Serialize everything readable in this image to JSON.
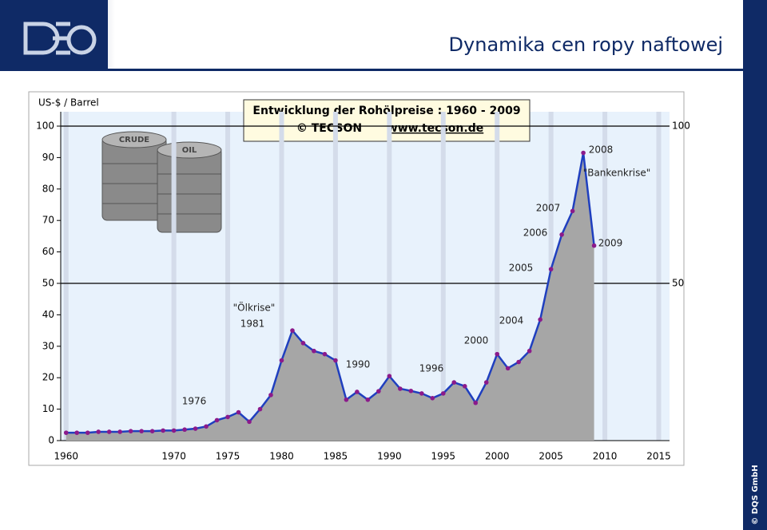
{
  "header": {
    "title": "Dynamika cen ropy naftowej"
  },
  "footer": {
    "copyright": "© DQS GmbH"
  },
  "chart_data": {
    "type": "line",
    "title": "Entwicklung der Rohölpreise :  1960 - 2009",
    "subtitle": [
      "© TECSON",
      "www.tecson.de"
    ],
    "y_label": "US-$ / Barrel",
    "image_labels": [
      "CRUDE",
      "OIL"
    ],
    "x": [
      1960,
      1961,
      1962,
      1963,
      1964,
      1965,
      1966,
      1967,
      1968,
      1969,
      1970,
      1971,
      1972,
      1973,
      1974,
      1975,
      1976,
      1977,
      1978,
      1979,
      1980,
      1981,
      1982,
      1983,
      1984,
      1985,
      1986,
      1987,
      1988,
      1989,
      1990,
      1991,
      1992,
      1993,
      1994,
      1995,
      1996,
      1997,
      1998,
      1999,
      2000,
      2001,
      2002,
      2003,
      2004,
      2005,
      2006,
      2007,
      2008,
      2009
    ],
    "values": [
      2.5,
      2.5,
      2.5,
      2.8,
      2.8,
      2.8,
      3.0,
      3.0,
      3.0,
      3.2,
      3.2,
      3.5,
      3.8,
      4.5,
      6.5,
      7.5,
      9,
      6,
      10,
      14.5,
      25.5,
      35,
      31,
      28.5,
      27.5,
      25.5,
      13,
      15.5,
      13,
      15.7,
      20.5,
      16.5,
      15.8,
      15,
      13.5,
      15,
      18.5,
      17.3,
      12,
      18.5,
      27.5,
      23,
      25,
      28.5,
      38.5,
      54.5,
      65.5,
      73,
      91.5,
      62
    ],
    "line_color": "#1f3fbf",
    "point_color": "#8b1a8b",
    "area_color": "#a6a6a6",
    "xlim": [
      1959.5,
      2016
    ],
    "xticks": [
      1960,
      1970,
      1975,
      1980,
      1985,
      1990,
      1995,
      2000,
      2005,
      2010,
      2015
    ],
    "ylim": [
      0,
      100
    ],
    "yticks": [
      0,
      10,
      20,
      30,
      40,
      50,
      60,
      70,
      80,
      90,
      100
    ],
    "y2lim": [
      0,
      100
    ],
    "y2ticks": [
      50,
      100
    ],
    "annotations": [
      "1976",
      "\"Ölkrise\"",
      "1981",
      "1990",
      "1996",
      "2000",
      "2004",
      "2005",
      "2006",
      "2007",
      "2008",
      "\"Bankenkrise\"",
      "2009"
    ]
  }
}
